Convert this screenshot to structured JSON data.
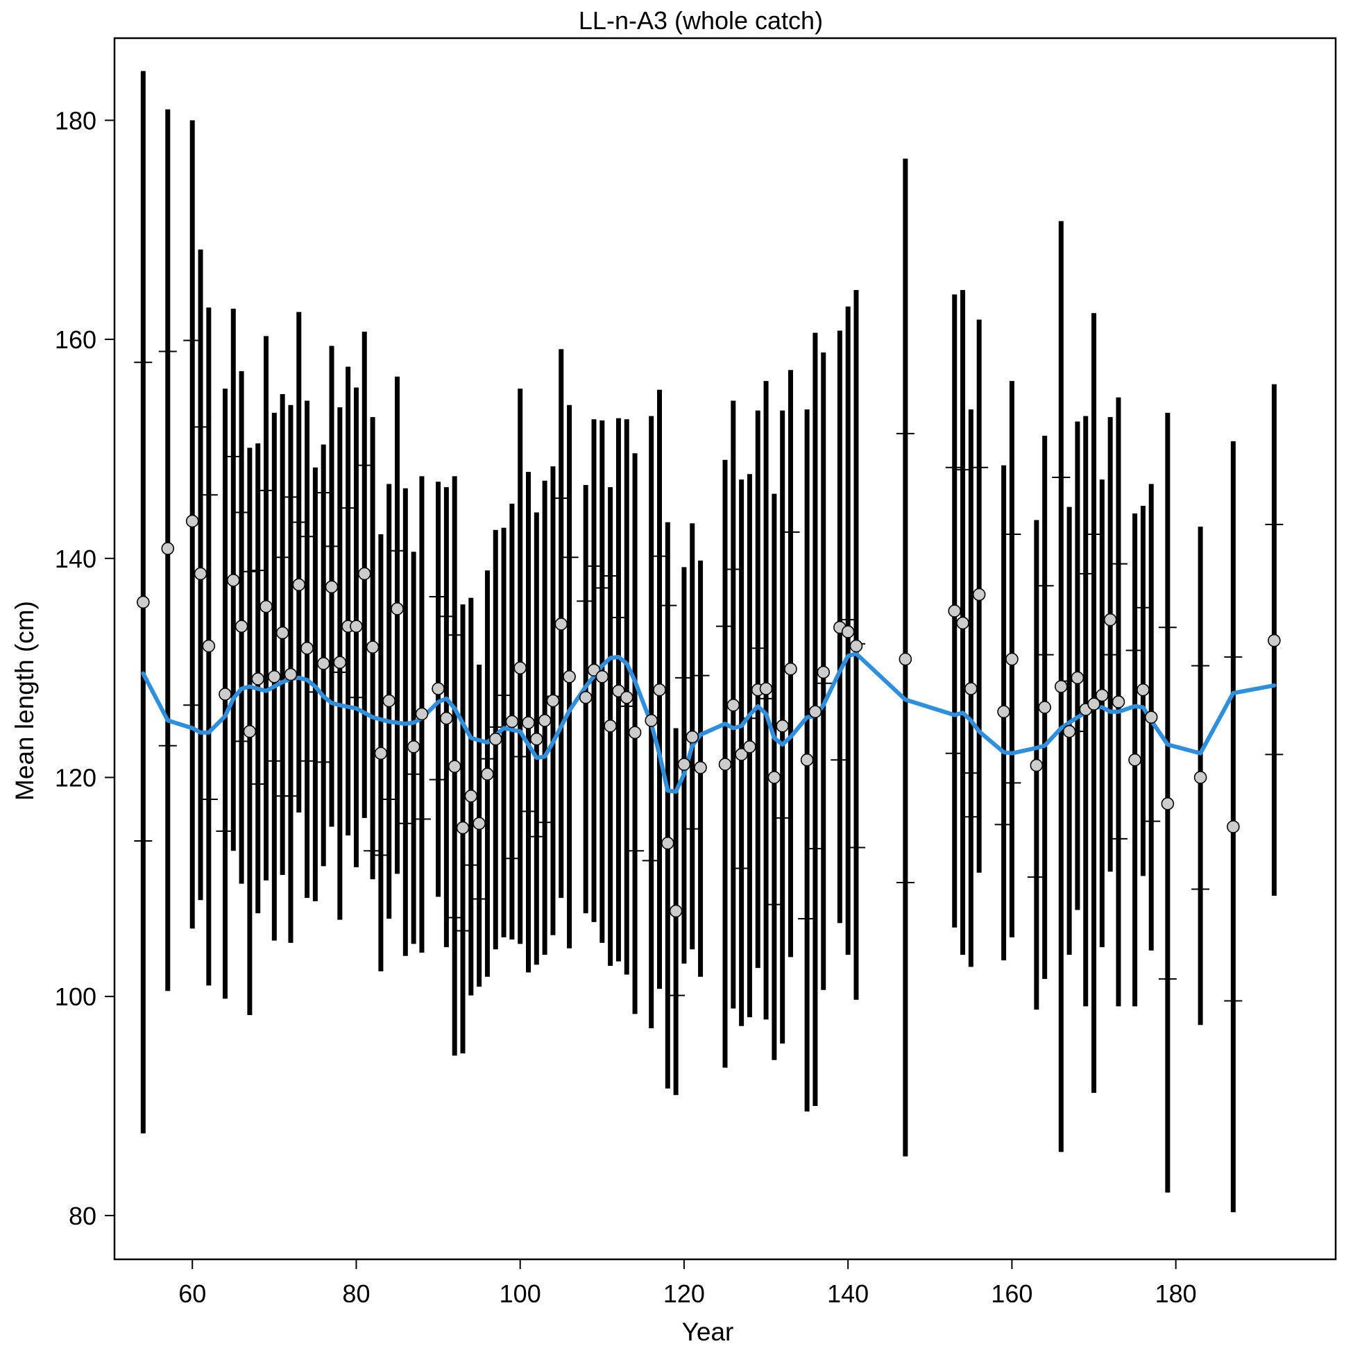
{
  "chart_data": {
    "type": "scatter",
    "title": "LL-n-A3 (whole catch)",
    "xlabel": "Year",
    "ylabel": "Mean length (cm)",
    "xlim": [
      50.5,
      199.5
    ],
    "ylim": [
      76,
      187.5
    ],
    "xticks": [
      60,
      80,
      100,
      120,
      140,
      160,
      180
    ],
    "yticks": [
      80,
      100,
      120,
      140,
      160,
      180
    ],
    "grid": false,
    "legend": "none",
    "colors": {
      "error_bar": "#000000",
      "point_fill": "#cccccc",
      "point_stroke": "#000000",
      "smoother": "#2f8fdd"
    },
    "series": [
      {
        "kind": "error_bars",
        "x": [
          54,
          57,
          60,
          61,
          62,
          64,
          65,
          66,
          67,
          68,
          69,
          70,
          71,
          72,
          73,
          74,
          75,
          76,
          77,
          78,
          79,
          80,
          81,
          82,
          83,
          84,
          85,
          86,
          87,
          88,
          90,
          91,
          92,
          93,
          94,
          95,
          96,
          97,
          98,
          99,
          100,
          101,
          102,
          103,
          104,
          105,
          106,
          108,
          109,
          110,
          111,
          112,
          113,
          114,
          116,
          117,
          118,
          119,
          120,
          121,
          122,
          125,
          126,
          127,
          128,
          129,
          130,
          131,
          132,
          133,
          135,
          136,
          137,
          139,
          140,
          141,
          147,
          153,
          154,
          155,
          156,
          159,
          160,
          163,
          164,
          166,
          167,
          168,
          169,
          170,
          171,
          172,
          173,
          175,
          176,
          177,
          179,
          183,
          187,
          192
        ],
        "lower": [
          87.5,
          100.5,
          106.2,
          108.8,
          101.0,
          99.8,
          113.3,
          110.3,
          98.3,
          107.6,
          110.6,
          105.1,
          111.1,
          104.9,
          116.8,
          109.0,
          108.7,
          111.9,
          115.5,
          107.0,
          114.7,
          111.8,
          116.3,
          110.7,
          102.3,
          107.1,
          111.2,
          103.7,
          104.8,
          104.0,
          109.1,
          104.5,
          94.6,
          94.8,
          100.1,
          100.9,
          101.8,
          104.3,
          105.4,
          105.2,
          104.8,
          102.2,
          102.9,
          103.8,
          105.6,
          109.0,
          104.4,
          107.6,
          106.8,
          104.9,
          102.8,
          103.2,
          102.0,
          98.4,
          97.1,
          100.7,
          91.6,
          91.0,
          103.0,
          104.3,
          101.8,
          93.5,
          98.9,
          97.3,
          98.1,
          102.6,
          97.9,
          94.2,
          95.7,
          103.6,
          89.5,
          90.0,
          100.6,
          106.7,
          103.8,
          99.7,
          85.4,
          106.3,
          103.8,
          102.7,
          111.3,
          103.3,
          105.4,
          98.8,
          101.6,
          85.8,
          103.8,
          107.9,
          99.1,
          91.2,
          104.5,
          111.4,
          99.1,
          99.1,
          111.0,
          104.2,
          82.1,
          97.4,
          80.3,
          109.2
        ],
        "upper": [
          184.5,
          181.0,
          180.0,
          168.2,
          162.9,
          155.5,
          162.8,
          157.1,
          150.1,
          150.5,
          160.3,
          153.3,
          155.0,
          154.0,
          162.5,
          154.4,
          148.3,
          150.4,
          159.4,
          153.8,
          157.5,
          155.6,
          160.7,
          152.9,
          142.2,
          146.8,
          156.6,
          146.4,
          140.6,
          147.5,
          147.0,
          146.5,
          147.5,
          135.8,
          136.4,
          130.3,
          138.9,
          142.6,
          142.8,
          145.0,
          155.5,
          147.9,
          144.2,
          147.1,
          148.4,
          159.1,
          154.0,
          146.7,
          152.7,
          152.6,
          146.5,
          152.8,
          152.7,
          149.6,
          153.0,
          155.4,
          143.3,
          124.5,
          139.2,
          143.2,
          139.8,
          149.0,
          154.4,
          147.2,
          147.7,
          153.5,
          156.2,
          145.9,
          153.5,
          157.2,
          153.6,
          160.6,
          158.8,
          160.8,
          163.0,
          164.5,
          176.5,
          164.1,
          164.5,
          153.6,
          161.8,
          148.5,
          156.2,
          143.5,
          151.2,
          170.8,
          144.7,
          152.5,
          153.0,
          162.4,
          147.2,
          152.9,
          154.7,
          144.1,
          144.8,
          146.8,
          153.3,
          142.9,
          150.7,
          155.9
        ]
      },
      {
        "kind": "interval_ticks",
        "x": [
          54,
          54,
          57,
          57,
          60,
          60,
          61,
          62,
          62,
          64,
          65,
          66,
          66,
          67,
          68,
          68,
          69,
          70,
          71,
          71,
          72,
          72,
          73,
          74,
          74,
          75,
          76,
          76,
          77,
          78,
          79,
          80,
          81,
          82,
          83,
          84,
          85,
          86,
          87,
          88,
          90,
          90,
          91,
          92,
          92,
          93,
          94,
          95,
          96,
          97,
          98,
          99,
          100,
          101,
          102,
          103,
          104,
          105,
          106,
          108,
          109,
          110,
          111,
          112,
          113,
          114,
          116,
          117,
          118,
          119,
          120,
          121,
          122,
          125,
          126,
          127,
          128,
          129,
          130,
          131,
          132,
          133,
          135,
          136,
          137,
          139,
          140,
          141,
          141,
          147,
          147,
          153,
          153,
          154,
          155,
          155,
          156,
          159,
          160,
          160,
          163,
          164,
          164,
          166,
          167,
          168,
          169,
          170,
          171,
          172,
          173,
          173,
          175,
          176,
          177,
          179,
          179,
          183,
          183,
          187,
          187,
          192,
          192
        ],
        "y": [
          157.9,
          114.2,
          158.9,
          122.9,
          159.9,
          126.6,
          152.0,
          145.8,
          118.0,
          115.1,
          149.3,
          144.2,
          123.3,
          138.8,
          119.4,
          138.9,
          146.2,
          121.5,
          140.1,
          118.3,
          145.6,
          118.3,
          143.3,
          142.0,
          121.5,
          127.8,
          146.0,
          121.4,
          141.1,
          129.6,
          144.6,
          127.3,
          148.5,
          113.3,
          112.9,
          118.0,
          140.7,
          115.8,
          120.3,
          116.2,
          136.5,
          119.8,
          134.7,
          133.0,
          107.2,
          106.0,
          112.0,
          108.9,
          121.7,
          124.6,
          127.5,
          112.6,
          121.9,
          116.9,
          114.6,
          115.9,
          127.4,
          145.5,
          140.1,
          136.1,
          139.3,
          137.3,
          138.4,
          134.6,
          126.5,
          113.3,
          112.4,
          140.2,
          135.7,
          100.1,
          129.1,
          115.3,
          129.3,
          133.8,
          139.0,
          111.7,
          125.4,
          131.8,
          127.2,
          108.4,
          116.3,
          142.4,
          107.1,
          113.5,
          128.6,
          121.6,
          134.4,
          132.2,
          113.6,
          151.4,
          110.4,
          148.3,
          122.2,
          148.1,
          116.4,
          120.4,
          148.3,
          115.7,
          142.2,
          119.5,
          110.9,
          131.2,
          137.5,
          147.4,
          128.8,
          124.2,
          138.6,
          142.2,
          126.3,
          131.2,
          139.5,
          114.4,
          131.6,
          135.5,
          116.0,
          133.7,
          101.6,
          130.2,
          109.8,
          131.0,
          99.6,
          143.1,
          122.1
        ]
      },
      {
        "kind": "points",
        "name": "",
        "x": [
          54,
          57,
          60,
          61,
          62,
          64,
          65,
          66,
          67,
          68,
          69,
          70,
          71,
          72,
          73,
          74,
          76,
          77,
          78,
          79,
          80,
          81,
          82,
          83,
          84,
          85,
          87,
          88,
          90,
          91,
          92,
          93,
          94,
          95,
          96,
          97,
          99,
          100,
          101,
          102,
          103,
          104,
          105,
          106,
          108,
          109,
          110,
          111,
          112,
          113,
          114,
          116,
          117,
          118,
          119,
          120,
          121,
          122,
          125,
          126,
          127,
          128,
          129,
          130,
          131,
          132,
          133,
          135,
          136,
          137,
          139,
          140,
          141,
          147,
          153,
          154,
          155,
          156,
          159,
          160,
          163,
          164,
          166,
          167,
          168,
          169,
          170,
          171,
          172,
          173,
          175,
          176,
          177,
          179,
          183,
          187,
          192
        ],
        "y": [
          136.0,
          140.9,
          143.4,
          138.6,
          132.0,
          127.6,
          138.0,
          133.8,
          124.2,
          129.0,
          135.6,
          129.2,
          133.2,
          129.4,
          137.6,
          131.8,
          130.4,
          137.4,
          130.5,
          133.8,
          133.8,
          138.6,
          131.9,
          122.2,
          127.0,
          135.4,
          122.8,
          125.8,
          128.1,
          125.4,
          121.0,
          115.4,
          118.3,
          115.8,
          120.3,
          123.5,
          125.1,
          130.0,
          125.0,
          123.5,
          125.2,
          127.0,
          134.0,
          129.2,
          127.3,
          129.8,
          129.2,
          124.7,
          127.9,
          127.3,
          124.1,
          125.2,
          128.0,
          114.0,
          107.8,
          121.2,
          123.7,
          120.9,
          121.2,
          126.6,
          122.1,
          122.8,
          128.0,
          128.1,
          120.0,
          124.7,
          129.9,
          121.6,
          126.0,
          129.6,
          133.7,
          133.3,
          132.0,
          130.8,
          135.2,
          134.1,
          128.1,
          136.7,
          126.0,
          130.8,
          121.1,
          126.4,
          128.3,
          124.2,
          129.1,
          126.2,
          126.7,
          127.5,
          134.4,
          126.9,
          121.6,
          128.0,
          125.5,
          117.6,
          120.0,
          115.5,
          132.5
        ]
      },
      {
        "kind": "smoother",
        "x": [
          54,
          57,
          60,
          61,
          62,
          64,
          65,
          66,
          67,
          68,
          69,
          70,
          71,
          72,
          73,
          74,
          75,
          76,
          77,
          78,
          80,
          82,
          84,
          86,
          87,
          88,
          90,
          91,
          92,
          94,
          96,
          98,
          100,
          102,
          103,
          104,
          106,
          108,
          110,
          111,
          112,
          113,
          114,
          116,
          117,
          118,
          119,
          120,
          121,
          122,
          125,
          126,
          127,
          128,
          129,
          130,
          131,
          132,
          133,
          135,
          136,
          137,
          139,
          140,
          141,
          147,
          153,
          154,
          155,
          156,
          159,
          160,
          163,
          164,
          166,
          167,
          168,
          169,
          170,
          171,
          172,
          173,
          175,
          176,
          177,
          179,
          183,
          187,
          192
        ],
        "y": [
          129.5,
          125.2,
          124.5,
          124.1,
          124.1,
          125.6,
          127.2,
          128.1,
          128.3,
          128.1,
          127.9,
          128.3,
          128.7,
          129.0,
          129.1,
          128.9,
          128.3,
          127.4,
          126.8,
          126.6,
          126.3,
          125.5,
          125.1,
          124.9,
          125.0,
          125.4,
          126.9,
          127.2,
          126.3,
          123.6,
          123.2,
          124.5,
          124.2,
          121.8,
          121.9,
          123.2,
          126.1,
          128.3,
          130.2,
          130.9,
          131.0,
          130.4,
          128.8,
          124.9,
          122.1,
          118.8,
          118.7,
          120.3,
          122.9,
          123.9,
          124.9,
          124.5,
          124.7,
          125.7,
          126.5,
          125.8,
          123.6,
          123.0,
          123.7,
          125.5,
          125.6,
          126.6,
          129.7,
          131.1,
          131.3,
          127.1,
          125.7,
          125.9,
          125.2,
          124.2,
          122.3,
          122.2,
          122.7,
          122.9,
          124.5,
          125.0,
          125.5,
          125.9,
          126.4,
          126.4,
          126.0,
          126.0,
          126.5,
          126.4,
          125.2,
          123.0,
          122.2,
          127.7,
          128.4
        ]
      }
    ]
  }
}
